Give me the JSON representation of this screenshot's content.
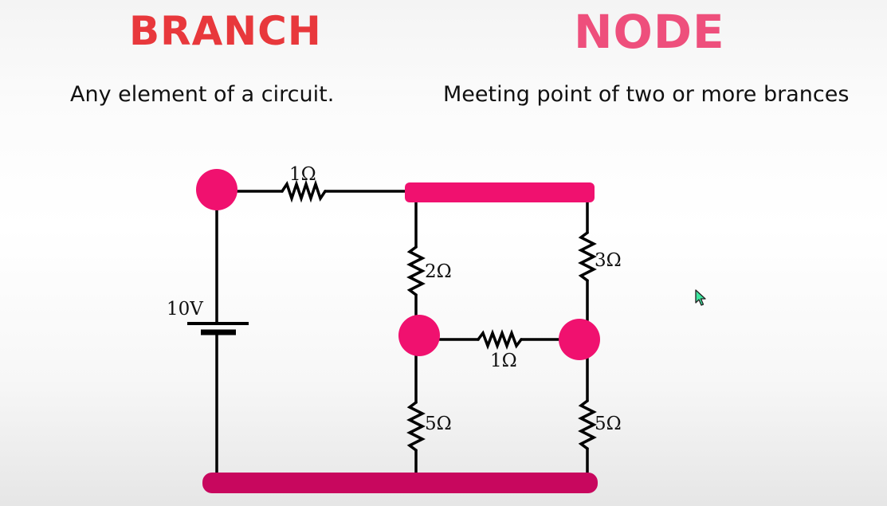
{
  "headings": {
    "branch": "BRANCH",
    "node": "NODE"
  },
  "descriptions": {
    "branch": "Any element of a circuit.",
    "node": "Meeting point of two or more brances"
  },
  "circuit": {
    "source_label": "10V",
    "resistors": {
      "top": "1Ω",
      "middle_left": "2Ω",
      "middle_right": "3Ω",
      "center": "1Ω",
      "bottom_left": "5Ω",
      "bottom_right": "5Ω"
    },
    "node_color": "#f0116f",
    "wire_color": "#000000"
  }
}
